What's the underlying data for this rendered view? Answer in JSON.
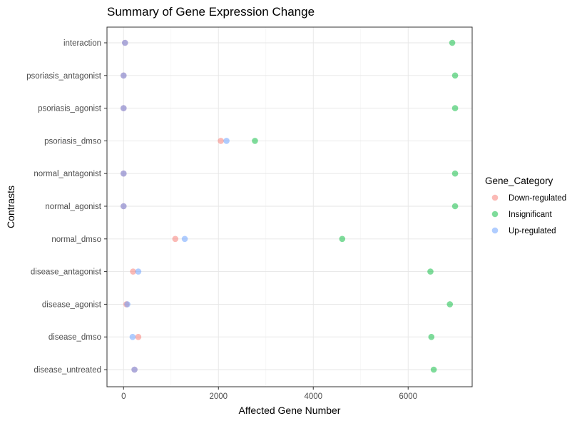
{
  "chart_data": {
    "type": "scatter",
    "title": "Summary of Gene Expression Change",
    "xlabel": "Affected Gene Number",
    "ylabel": "Contrasts",
    "xlim": [
      -350,
      7350
    ],
    "x_ticks": [
      0,
      2000,
      4000,
      6000
    ],
    "x_tick_labels": [
      "0",
      "2000",
      "4000",
      "6000"
    ],
    "categories": [
      "disease_untreated",
      "disease_dmso",
      "disease_agonist",
      "disease_antagonist",
      "normal_dmso",
      "normal_agonist",
      "normal_antagonist",
      "psoriasis_dmso",
      "psoriasis_agonist",
      "psoriasis_antagonist",
      "interaction"
    ],
    "grid": true,
    "legend_title": "Gene_Category",
    "legend_position": "right",
    "series": [
      {
        "name": "Down-regulated",
        "color": "#F8766D",
        "values": [
          230,
          310,
          60,
          200,
          1090,
          0,
          0,
          2050,
          0,
          0,
          30
        ]
      },
      {
        "name": "Insignificant",
        "color": "#00BA38",
        "values": [
          6540,
          6490,
          6880,
          6470,
          4610,
          6990,
          6990,
          2770,
          6990,
          6990,
          6930
        ]
      },
      {
        "name": "Up-regulated",
        "color": "#619CFF",
        "values": [
          230,
          190,
          80,
          310,
          1290,
          0,
          0,
          2170,
          0,
          0,
          30
        ]
      }
    ]
  }
}
